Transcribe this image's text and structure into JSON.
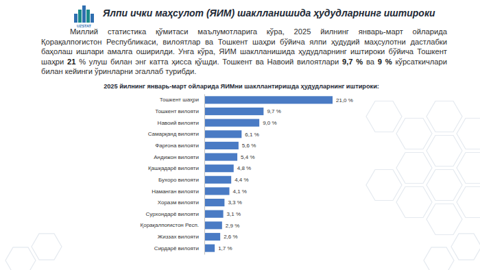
{
  "header": {
    "title": "Ялпи ички маҳсулот (ЯИМ) шаклланишида ҳудудларнинг иштироки",
    "logo": "UZSTAT",
    "paragraph": [
      {
        "text": "Миллий статистика қўмитаси маълумотларига кўра, 2025 йилнинг январь-март ойларида Қорақалпоғистон Республикаси, вилоятлар ва Тошкент шаҳри бўйича ялпи ҳудудий маҳсулотни дастлабки баҳолаш ишлари амалга оширилди. Унга кўра, ЯИМ шаклланишида ҳудудларнинг иштироки бўйича Тошкент шаҳри ",
        "bold": false
      },
      {
        "text": "21",
        "bold": true
      },
      {
        "text": " % улуш билан энг катта ҳисса қўшди. Тошкент ва Навоий вилоятлари ",
        "bold": false
      },
      {
        "text": "9,7 %",
        "bold": true
      },
      {
        "text": " ва ",
        "bold": false
      },
      {
        "text": "9 %",
        "bold": true
      },
      {
        "text": " кўрсаткичлари билан кейинги ўринларни эгаллаб турибди.",
        "bold": false
      }
    ]
  },
  "chart_data": {
    "type": "bar",
    "orientation": "horizontal",
    "title": "2025 йилнинг январь-март ойларида ЯИМни шакллантиришда ҳудудларнинг иштироки:",
    "categories": [
      "Тошкент шаҳри",
      "Тошкент вилояти",
      "Навоий вилояти",
      "Самарқанд вилояти",
      "Фарғона вилояти",
      "Андижон вилояти",
      "Қашқадарё вилояти",
      "Бухоро вилояти",
      "Наманган вилояти",
      "Хоразм вилояти",
      "Сурхондарё вилояти",
      "Қорақалпоғистон Респ.",
      "Жиззах вилояти",
      "Сирдарё вилояти"
    ],
    "values": [
      21.0,
      9.7,
      9.0,
      6.1,
      5.6,
      5.4,
      4.8,
      4.4,
      4.1,
      3.3,
      3.1,
      2.9,
      2.6,
      1.7
    ],
    "value_labels": [
      "21,0 %",
      "9,7 %",
      "9,0 %",
      "6,1 %",
      "5,6 %",
      "5,4 %",
      "4,8 %",
      "4,4 %",
      "4,1 %",
      "3,3 %",
      "3,1 %",
      "2,9 %",
      "2,6 %",
      "1,7 %"
    ],
    "color": "#4a7bc4",
    "data_labels": true,
    "tick_labels": "y",
    "grid": false
  }
}
